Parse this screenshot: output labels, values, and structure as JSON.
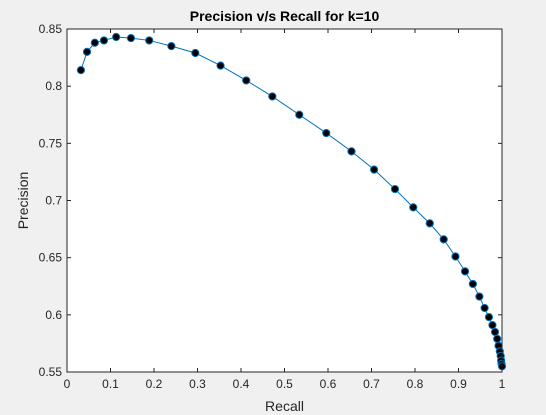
{
  "colors": {
    "figure_bg": "#f0f0f0",
    "axes_bg": "#ffffff",
    "axes_edge": "#262626",
    "line": "#0072bd",
    "marker": "#000000"
  },
  "chart_data": {
    "type": "line",
    "title": "Precision v/s Recall for k=10",
    "xlabel": "Recall",
    "ylabel": "Precision",
    "xlim": [
      0,
      1
    ],
    "ylim": [
      0.55,
      0.85
    ],
    "grid": false,
    "x_ticks": [
      "0",
      "0.1",
      "0.2",
      "0.3",
      "0.4",
      "0.5",
      "0.6",
      "0.7",
      "0.8",
      "0.9",
      "1"
    ],
    "y_ticks": [
      "0.55",
      "0.6",
      "0.65",
      "0.7",
      "0.75",
      "0.8",
      "0.85"
    ],
    "series": [
      {
        "line_style": "solid",
        "marker": "filled-circle",
        "x": [
          0.032,
          0.046,
          0.064,
          0.085,
          0.113,
          0.147,
          0.189,
          0.24,
          0.295,
          0.353,
          0.412,
          0.472,
          0.534,
          0.596,
          0.654,
          0.706,
          0.754,
          0.796,
          0.834,
          0.866,
          0.893,
          0.915,
          0.933,
          0.948,
          0.96,
          0.97,
          0.978,
          0.984,
          0.989,
          0.992,
          0.995,
          0.997,
          0.998,
          0.999,
          1.0
        ],
        "y": [
          0.814,
          0.83,
          0.838,
          0.84,
          0.843,
          0.842,
          0.84,
          0.835,
          0.829,
          0.818,
          0.805,
          0.791,
          0.775,
          0.759,
          0.743,
          0.727,
          0.71,
          0.694,
          0.68,
          0.666,
          0.651,
          0.638,
          0.627,
          0.616,
          0.606,
          0.598,
          0.591,
          0.585,
          0.579,
          0.573,
          0.568,
          0.564,
          0.56,
          0.557,
          0.555
        ]
      }
    ]
  }
}
